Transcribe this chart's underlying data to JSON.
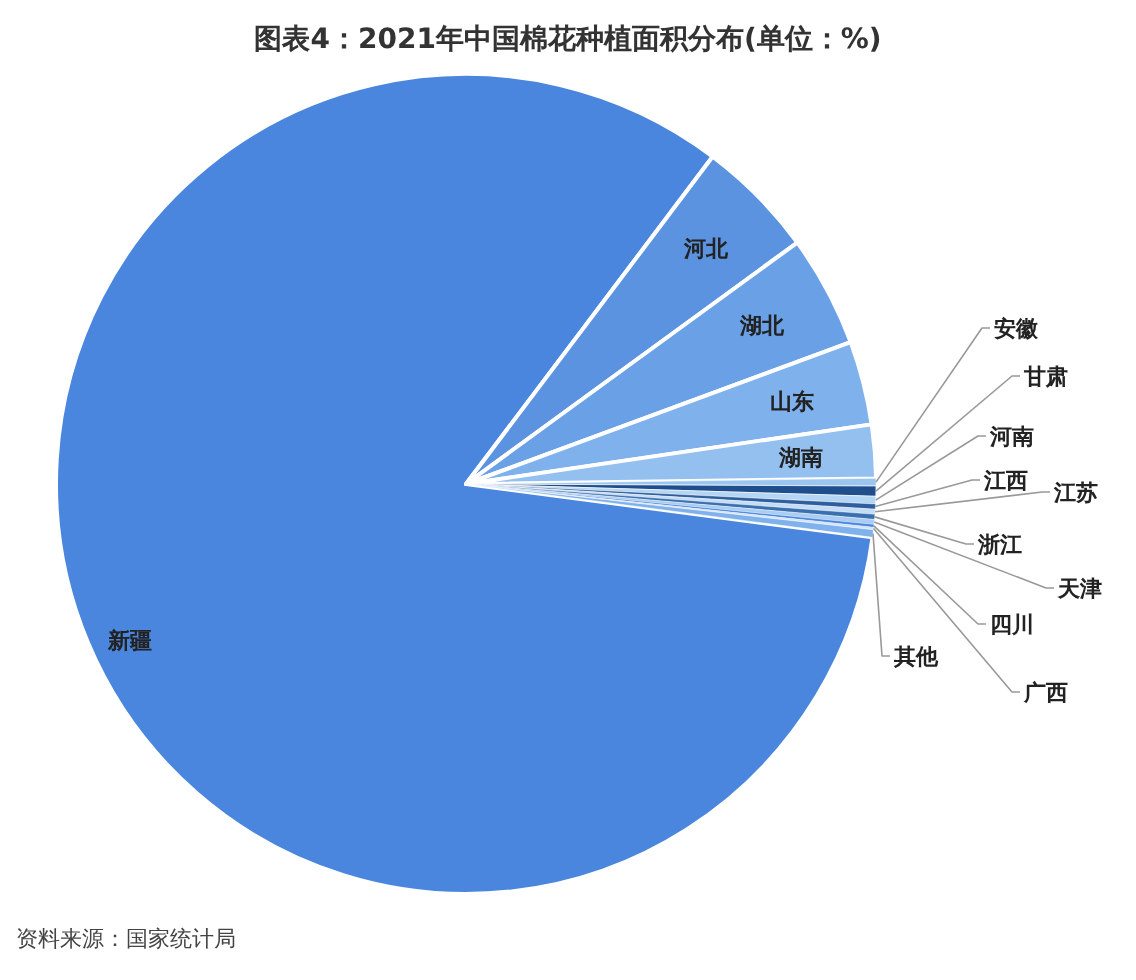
{
  "chart_data": {
    "type": "pie",
    "title": "图表4：2021年中国棉花种植面积分布(单位：%)",
    "categories": [
      "新疆",
      "河北",
      "湖北",
      "山东",
      "湖南",
      "安徽",
      "甘肃",
      "河南",
      "江西",
      "江苏",
      "浙江",
      "天津",
      "四川",
      "广西",
      "其他"
    ],
    "values": [
      83.2,
      4.7,
      4.4,
      3.3,
      2.1,
      0.3,
      0.4,
      0.3,
      0.2,
      0.2,
      0.2,
      0.2,
      0.1,
      0.1,
      0.3
    ],
    "colors": [
      "#4a86dd",
      "#5b93e0",
      "#6aa0e6",
      "#7fb1ec",
      "#94c0f0",
      "#9cc6f2",
      "#1f4e8c",
      "#b5d5f5",
      "#2d5f9e",
      "#c4dcf6",
      "#3a70b0",
      "#a9cdf3",
      "#4a86dd",
      "#d2e4f8",
      "#7fb1ec"
    ],
    "annotations": [
      "资料来源：国家统计局"
    ]
  }
}
